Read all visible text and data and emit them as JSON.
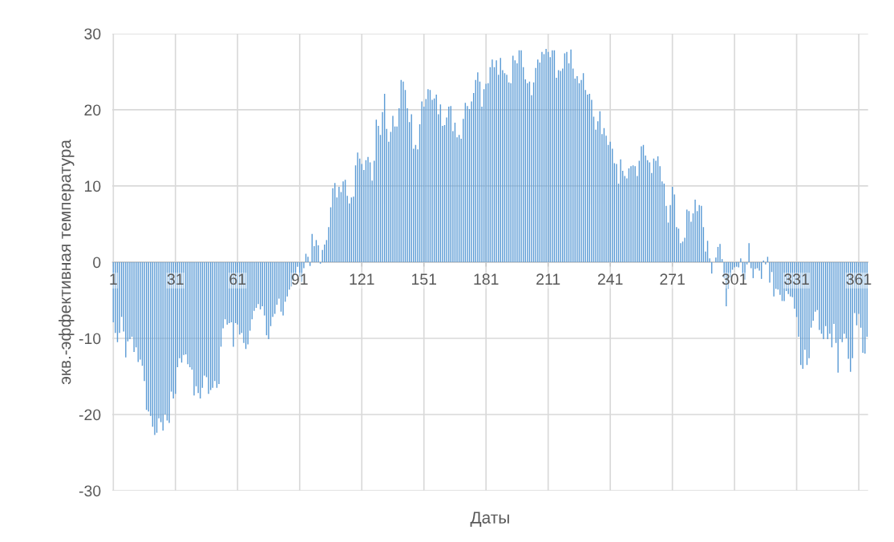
{
  "chart_data": {
    "type": "bar",
    "xlabel": "Даты",
    "ylabel": "экв.-эффективная температура",
    "categories": [
      "1",
      null,
      null,
      null,
      null,
      null,
      null,
      null,
      null,
      null,
      null,
      null,
      null,
      null,
      null,
      null,
      null,
      null,
      null,
      null,
      null,
      null,
      null,
      null,
      null,
      null,
      null,
      null,
      null,
      null,
      "31",
      null,
      null,
      null,
      null,
      null,
      null,
      null,
      null,
      null,
      null,
      null,
      null,
      null,
      null,
      null,
      null,
      null,
      null,
      null,
      null,
      null,
      null,
      null,
      null,
      null,
      null,
      null,
      null,
      null,
      "61",
      null,
      null,
      null,
      null,
      null,
      null,
      null,
      null,
      null,
      null,
      null,
      null,
      null,
      null,
      null,
      null,
      null,
      null,
      null,
      null,
      null,
      null,
      null,
      null,
      null,
      null,
      null,
      null,
      null,
      "91",
      null,
      null,
      null,
      null,
      null,
      null,
      null,
      null,
      null,
      null,
      null,
      null,
      null,
      null,
      null,
      null,
      null,
      null,
      null,
      null,
      null,
      null,
      null,
      null,
      null,
      null,
      null,
      null,
      null,
      "121",
      null,
      null,
      null,
      null,
      null,
      null,
      null,
      null,
      null,
      null,
      null,
      null,
      null,
      null,
      null,
      null,
      null,
      null,
      null,
      null,
      null,
      null,
      null,
      null,
      null,
      null,
      null,
      null,
      null,
      "151",
      null,
      null,
      null,
      null,
      null,
      null,
      null,
      null,
      null,
      null,
      null,
      null,
      null,
      null,
      null,
      null,
      null,
      null,
      null,
      null,
      null,
      null,
      null,
      null,
      null,
      null,
      null,
      null,
      null,
      "181",
      null,
      null,
      null,
      null,
      null,
      null,
      null,
      null,
      null,
      null,
      null,
      null,
      null,
      null,
      null,
      null,
      null,
      null,
      null,
      null,
      null,
      null,
      null,
      null,
      null,
      null,
      null,
      null,
      null,
      "211",
      null,
      null,
      null,
      null,
      null,
      null,
      null,
      null,
      null,
      null,
      null,
      null,
      null,
      null,
      null,
      null,
      null,
      null,
      null,
      null,
      null,
      null,
      null,
      null,
      null,
      null,
      null,
      null,
      null,
      "241",
      null,
      null,
      null,
      null,
      null,
      null,
      null,
      null,
      null,
      null,
      null,
      null,
      null,
      null,
      null,
      null,
      null,
      null,
      null,
      null,
      null,
      null,
      null,
      null,
      null,
      null,
      null,
      null,
      null,
      "271",
      null,
      null,
      null,
      null,
      null,
      null,
      null,
      null,
      null,
      null,
      null,
      null,
      null,
      null,
      null,
      null,
      null,
      null,
      null,
      null,
      null,
      null,
      null,
      null,
      null,
      null,
      null,
      null,
      null,
      "301",
      null,
      null,
      null,
      null,
      null,
      null,
      null,
      null,
      null,
      null,
      null,
      null,
      null,
      null,
      null,
      null,
      null,
      null,
      null,
      null,
      null,
      null,
      null,
      null,
      null,
      null,
      null,
      null,
      null,
      "331",
      null,
      null,
      null,
      null,
      null,
      null,
      null,
      null,
      null,
      null,
      null,
      null,
      null,
      null,
      null,
      null,
      null,
      null,
      null,
      null,
      null,
      null,
      null,
      null,
      null,
      null,
      null,
      null,
      null,
      "361",
      null,
      null,
      null,
      null
    ],
    "series": [
      {
        "color": "#5b9bd5",
        "values": [
          -7.9,
          -9.3,
          -10.5,
          -9.3,
          -7.2,
          -9.1,
          -12.5,
          -10.4,
          -10.1,
          -9.8,
          -11.8,
          -11.2,
          -13.1,
          -12.8,
          -13.6,
          -15.6,
          -19.4,
          -19.6,
          -20.2,
          -21.6,
          -22.7,
          -22.4,
          -20.5,
          -21.0,
          -22.1,
          -20.0,
          -20.8,
          -21.1,
          -17.0,
          -17.9,
          -17.3,
          -13.8,
          -12.6,
          -13.2,
          -12.2,
          -12.1,
          -13.4,
          -13.8,
          -14.1,
          -17.5,
          -16.3,
          -17.2,
          -17.9,
          -16.5,
          -14.9,
          -15.1,
          -17.3,
          -16.8,
          -16.5,
          -15.6,
          -16.5,
          -16.0,
          -11.1,
          -8.7,
          -7.5,
          -8.2,
          -8.0,
          -7.9,
          -11.1,
          -8.0,
          -8.2,
          -9.5,
          -9.3,
          -10.6,
          -11.4,
          -10.8,
          -9.0,
          -7.5,
          -6.4,
          -6.0,
          -5.5,
          -6.2,
          -5.8,
          -7.0,
          -9.6,
          -10.1,
          -8.4,
          -7.2,
          -6.8,
          -5.6,
          -4.8,
          -6.5,
          -7.0,
          -5.2,
          -4.5,
          -3.6,
          -3.2,
          -2.4,
          -1.5,
          -0.6,
          -1.9,
          -2.6,
          -0.8,
          1.1,
          0.7,
          -0.5,
          3.7,
          2.1,
          2.9,
          2.2,
          -0.2,
          1.6,
          2.3,
          2.9,
          4.6,
          7.2,
          9.7,
          10.4,
          8.5,
          9.9,
          9.2,
          10.6,
          10.8,
          8.7,
          7.7,
          8.5,
          8.6,
          12.7,
          14.4,
          13.6,
          12.9,
          12.1,
          13.4,
          13.8,
          13.1,
          10.7,
          13.3,
          18.7,
          17.9,
          16.7,
          19.7,
          22.1,
          17.5,
          15.8,
          17.1,
          19.2,
          17.8,
          17.8,
          20.2,
          23.9,
          23.7,
          22.6,
          20.2,
          18.4,
          19.4,
          14.9,
          15.4,
          14.8,
          18.1,
          21.1,
          20.4,
          21.4,
          22.7,
          22.6,
          21.3,
          21.5,
          22.0,
          19.4,
          20.7,
          17.9,
          18.0,
          19.0,
          20.4,
          20.5,
          17.2,
          18.3,
          16.4,
          16.7,
          16.2,
          18.8,
          20.9,
          20.5,
          20.1,
          21.1,
          22.2,
          23.9,
          24.9,
          23.7,
          20.4,
          22.7,
          23.4,
          23.5,
          25.6,
          26.6,
          25.6,
          26.5,
          24.6,
          26.8,
          25.2,
          24.8,
          24.6,
          23.6,
          23.5,
          27.1,
          26.5,
          26.1,
          27.8,
          27.8,
          25.6,
          24.0,
          23.5,
          23.7,
          21.9,
          23.6,
          25.5,
          26.6,
          26.2,
          27.6,
          27.3,
          28.0,
          27.6,
          26.9,
          27.8,
          27.8,
          24.2,
          25.2,
          25.1,
          25.4,
          27.4,
          27.6,
          26.1,
          27.9,
          25.4,
          24.1,
          24.4,
          23.5,
          23.9,
          24.8,
          22.6,
          22.0,
          22.1,
          21.3,
          19.1,
          17.4,
          18.5,
          19.8,
          16.8,
          17.6,
          16.6,
          15.4,
          15.8,
          14.9,
          13.0,
          12.9,
          10.3,
          13.5,
          12.0,
          11.3,
          11.0,
          12.3,
          12.6,
          12.7,
          12.6,
          11.3,
          13.3,
          15.2,
          15.4,
          14.0,
          13.4,
          13.1,
          11.7,
          13.6,
          13.3,
          13.9,
          12.6,
          10.6,
          10.3,
          7.4,
          5.2,
          7.5,
          9.9,
          8.9,
          4.6,
          4.4,
          2.5,
          2.7,
          3.2,
          6.9,
          6.7,
          5.3,
          6.4,
          8.2,
          6.7,
          7.5,
          7.4,
          4.6,
          1.4,
          2.8,
          0.5,
          -1.5,
          0.0,
          0.6,
          2.0,
          2.4,
          0.4,
          -2.1,
          -5.8,
          -3.5,
          -2.0,
          -1.0,
          -0.7,
          -0.6,
          -0.7,
          0.5,
          -1.8,
          -2.3,
          -0.3,
          2.5,
          -0.8,
          -2.1,
          -0.9,
          -0.8,
          -1.1,
          -2.2,
          0.2,
          -0.3,
          0.7,
          -2.7,
          -1.3,
          -4.5,
          -3.5,
          -3.6,
          -4.3,
          -5.1,
          -5.1,
          -3.8,
          -4.2,
          -4.5,
          -4.6,
          -6.1,
          -7.2,
          -9.8,
          -13.5,
          -14.0,
          -11.5,
          -13.5,
          -12.6,
          -8.6,
          -7.7,
          -6.5,
          -6.3,
          -8.9,
          -9.4,
          -10.1,
          -8.4,
          -10.1,
          -9.4,
          -11.2,
          -8.1,
          -10.6,
          -14.5,
          -10.1,
          -10.5,
          -9.4,
          -10.0,
          -12.7,
          -14.4,
          -12.6,
          -6.7,
          -8.3,
          -6.8,
          -8.6,
          -11.9,
          -12.0,
          -9.8
        ]
      }
    ],
    "ylim": [
      -30,
      30
    ],
    "yticks": [
      -30,
      -20,
      -10,
      0,
      10,
      20,
      30
    ],
    "grid": true
  }
}
